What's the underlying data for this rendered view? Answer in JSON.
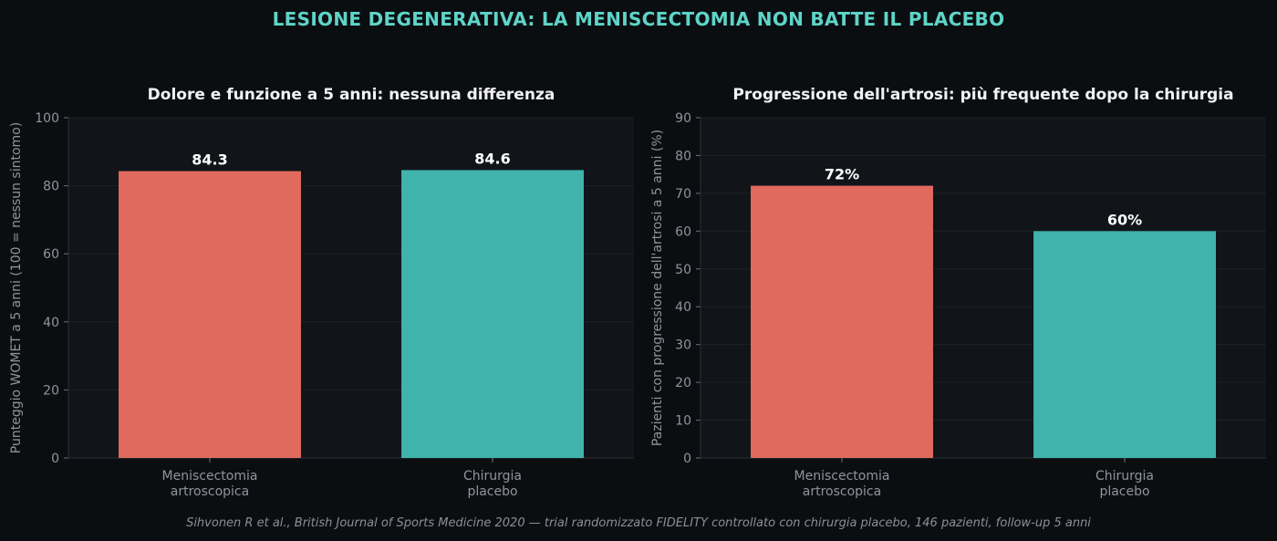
{
  "suptitle": "LESIONE DEGENERATIVA: LA MENISCECTOMIA NON BATTE IL PLACEBO",
  "caption": "Sihvonen R et al., British Journal of Sports Medicine 2020 — trial randomizzato FIDELITY controllato con chirurgia placebo, 146 pazienti, follow-up 5 anni",
  "colors": {
    "background": "#0b0e11",
    "panel": "#111519",
    "grid": "#1d2227",
    "axis": "#2a3036",
    "surgery": "#e06a5e",
    "placebo": "#40b3ac",
    "suptitle": "#5fd4c8"
  },
  "chart_data": [
    {
      "type": "bar",
      "title": "Dolore e funzione a 5 anni: nessuna differenza",
      "ylabel": "Punteggio WOMET a 5 anni (100 = nessun sintomo)",
      "categories": [
        [
          "Meniscectomia",
          "artroscopica"
        ],
        [
          "Chirurgia",
          "placebo"
        ]
      ],
      "values": [
        84.3,
        84.6
      ],
      "value_labels": [
        "84.3",
        "84.6"
      ],
      "ylim": [
        0,
        100
      ],
      "yticks": [
        0,
        20,
        40,
        60,
        80,
        100
      ],
      "grid": true
    },
    {
      "type": "bar",
      "title": "Progressione dell'artrosi: più frequente dopo la chirurgia",
      "ylabel": "Pazienti con progressione dell'artrosi a 5 anni (%)",
      "categories": [
        [
          "Meniscectomia",
          "artroscopica"
        ],
        [
          "Chirurgia",
          "placebo"
        ]
      ],
      "values": [
        72,
        60
      ],
      "value_labels": [
        "72%",
        "60%"
      ],
      "ylim": [
        0,
        90
      ],
      "yticks": [
        0,
        10,
        20,
        30,
        40,
        50,
        60,
        70,
        80,
        90
      ],
      "grid": true
    }
  ]
}
